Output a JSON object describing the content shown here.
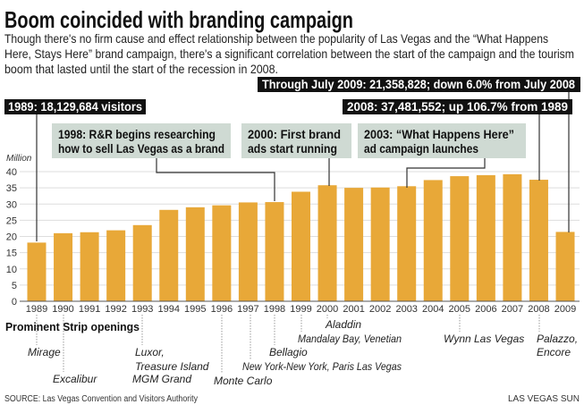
{
  "header": {
    "title": "Boom coincided with branding campaign",
    "dek_lines": [
      "Though there's no firm cause and effect relationship between the popularity of Las Vegas and the “What Happens",
      "Here, Stays Here” brand campaign, there's a significant correlation between the start of the campaign and the tourism",
      "boom that lasted until the start of the recession in 2008."
    ]
  },
  "annotations": {
    "through_2009": "Through July 2009: 21,358,828; down 6.0% from July 2008",
    "y1989": "1989: 18,129,684 visitors",
    "y2008": "2008: 37,481,552; up 106.7% from 1989",
    "rr_1998": [
      "1998: R&R begins researching",
      "how to sell Las Vegas as a brand"
    ],
    "ads_2000": [
      "2000: First brand",
      "ads start running"
    ],
    "campaign_2003": [
      "2003: “What Happens Here”",
      "ad campaign launches"
    ]
  },
  "chart_data": {
    "type": "bar",
    "title": "Boom coincided with branding campaign",
    "ylabel": "Million",
    "xlabel": "",
    "ylim": [
      0,
      40
    ],
    "yticks": [
      "0",
      "5",
      "10",
      "15",
      "20",
      "25",
      "30",
      "35",
      "40"
    ],
    "grid": true,
    "bar_color": "#E8A838",
    "categories": [
      "1989",
      "1990",
      "1991",
      "1992",
      "1993",
      "1994",
      "1995",
      "1996",
      "1997",
      "1998",
      "1999",
      "2000",
      "2001",
      "2002",
      "2003",
      "2004",
      "2005",
      "2006",
      "2007",
      "2008",
      "2009"
    ],
    "values": [
      18.1,
      21.0,
      21.3,
      21.9,
      23.5,
      28.2,
      29.0,
      29.6,
      30.5,
      30.6,
      33.8,
      35.8,
      35.0,
      35.1,
      35.5,
      37.4,
      38.6,
      38.9,
      39.2,
      37.5,
      21.4
    ]
  },
  "openings": {
    "heading": "Prominent Strip openings",
    "items": [
      {
        "year": "1989",
        "lines": [
          "Mirage"
        ]
      },
      {
        "year": "1990",
        "lines": [
          "Excalibur"
        ]
      },
      {
        "year": "1993",
        "lines": [
          "Luxor,",
          "Treasure Island",
          "MGM Grand"
        ]
      },
      {
        "year": "1996",
        "lines": [
          "Monte Carlo"
        ]
      },
      {
        "year": "1997",
        "lines": [
          "New York-New York, Paris Las Vegas"
        ]
      },
      {
        "year": "1998",
        "lines": [
          "Bellagio"
        ]
      },
      {
        "year": "1999",
        "lines": [
          "Mandalay Bay, Venetian"
        ]
      },
      {
        "year": "2000",
        "lines": [
          "Aladdin"
        ]
      },
      {
        "year": "2005",
        "lines": [
          "Wynn Las Vegas"
        ]
      },
      {
        "year": "2008",
        "lines": [
          "Palazzo,",
          "Encore"
        ]
      }
    ]
  },
  "footer": {
    "source": "SOURCE: Las Vegas Convention and Visitors Authority",
    "credit": "LAS VEGAS SUN"
  }
}
